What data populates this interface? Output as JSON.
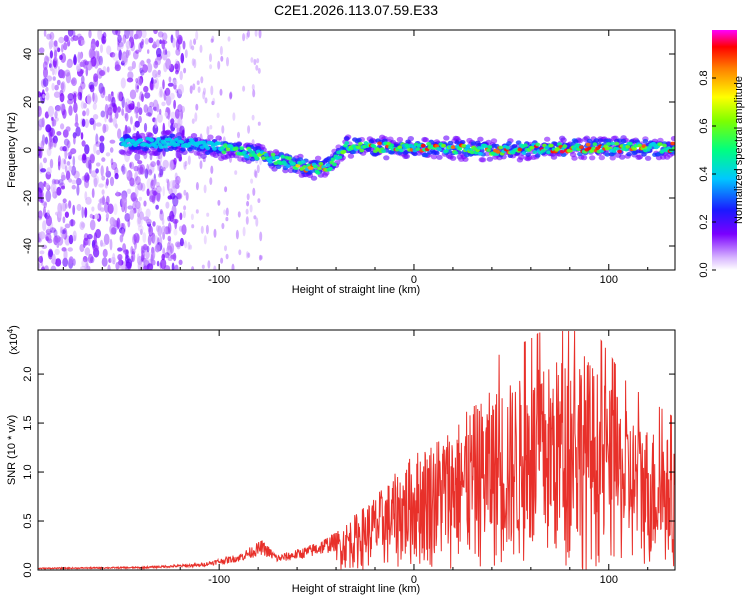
{
  "title": "C2E1.2026.113.07.59.E33",
  "chart_data": [
    {
      "type": "heatmap",
      "name": "spectrogram",
      "xlabel": "Height of straight line (km)",
      "ylabel": "Frequency (Hz)",
      "xlim": [
        -193,
        134
      ],
      "ylim": [
        -50,
        50
      ],
      "xticks": [
        -100,
        0,
        100
      ],
      "yticks": [
        -40,
        -20,
        0,
        20,
        40
      ],
      "ridge": [
        {
          "x": -140,
          "y": 3
        },
        {
          "x": -120,
          "y": 3
        },
        {
          "x": -100,
          "y": 1
        },
        {
          "x": -80,
          "y": -2
        },
        {
          "x": -65,
          "y": -5
        },
        {
          "x": -50,
          "y": -8
        },
        {
          "x": -42,
          "y": -6
        },
        {
          "x": -35,
          "y": 2
        },
        {
          "x": -20,
          "y": 1
        },
        {
          "x": 0,
          "y": 1
        },
        {
          "x": 40,
          "y": 0
        },
        {
          "x": 80,
          "y": 1
        },
        {
          "x": 134,
          "y": 1
        }
      ],
      "colorbar": {
        "label": "Normalized spectral amplitude",
        "range": [
          0.0,
          1.0
        ],
        "ticks": [
          0.0,
          0.2,
          0.4,
          0.6,
          0.8
        ]
      }
    },
    {
      "type": "line",
      "name": "snr",
      "xlabel": "Height of straight line (km)",
      "ylabel": "SNR (10 * v/v)",
      "scale_label": "(x10",
      "scale_exp": "4",
      "scale_close": ")",
      "xlim": [
        -193,
        134
      ],
      "ylim": [
        0.0,
        2.45
      ],
      "xticks": [
        -100,
        0,
        100
      ],
      "yticks": [
        0.0,
        0.5,
        1.0,
        1.5,
        2.0
      ],
      "color": "#e8302a",
      "envelope": [
        {
          "x": -193,
          "y": 0.02
        },
        {
          "x": -140,
          "y": 0.03
        },
        {
          "x": -110,
          "y": 0.06
        },
        {
          "x": -90,
          "y": 0.15
        },
        {
          "x": -78,
          "y": 0.28
        },
        {
          "x": -70,
          "y": 0.14
        },
        {
          "x": -55,
          "y": 0.22
        },
        {
          "x": -40,
          "y": 0.35
        },
        {
          "x": -30,
          "y": 0.5
        },
        {
          "x": -15,
          "y": 0.75
        },
        {
          "x": 0,
          "y": 1.05
        },
        {
          "x": 20,
          "y": 1.3
        },
        {
          "x": 40,
          "y": 1.6
        },
        {
          "x": 60,
          "y": 1.75
        },
        {
          "x": 85,
          "y": 2.0
        },
        {
          "x": 110,
          "y": 1.4
        },
        {
          "x": 134,
          "y": 1.15
        }
      ]
    }
  ]
}
